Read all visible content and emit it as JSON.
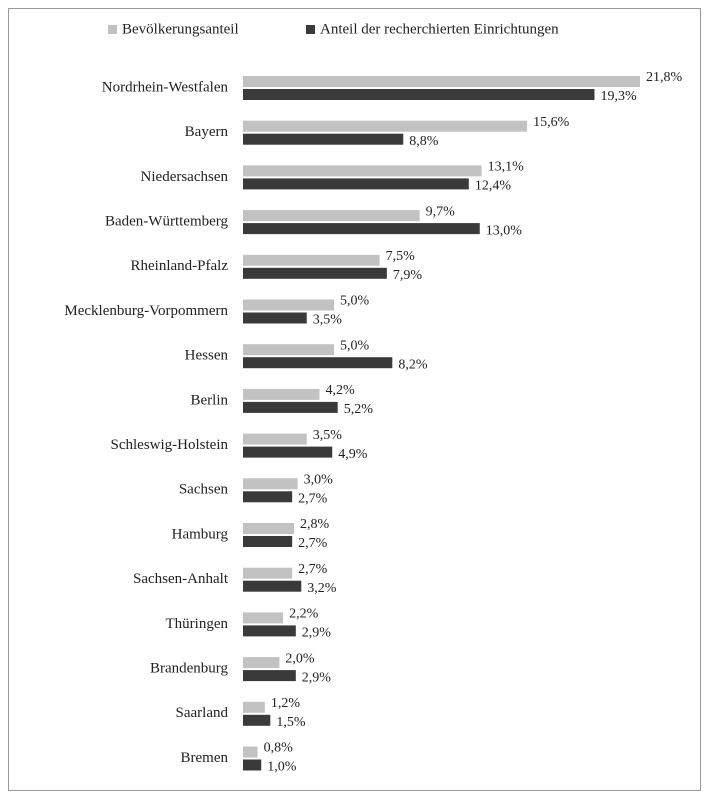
{
  "chart_data": {
    "type": "bar",
    "orientation": "horizontal",
    "categories": [
      "Nordrhein-Westfalen",
      "Bayern",
      "Niedersachsen",
      "Baden-Württemberg",
      "Rheinland-Pfalz",
      "Mecklenburg-Vorpommern",
      "Hessen",
      "Berlin",
      "Schleswig-Holstein",
      "Sachsen",
      "Hamburg",
      "Sachsen-Anhalt",
      "Thüringen",
      "Brandenburg",
      "Saarland",
      "Bremen"
    ],
    "series": [
      {
        "name": "Bevölkerungsanteil",
        "color": "#c2c2c2",
        "values": [
          21.8,
          15.6,
          13.1,
          9.7,
          7.5,
          5.0,
          5.0,
          4.2,
          3.5,
          3.0,
          2.8,
          2.7,
          2.2,
          2.0,
          1.2,
          0.8
        ],
        "value_labels": [
          "21,8%",
          "15,6%",
          "13,1%",
          "9,7%",
          "7,5%",
          "5,0%",
          "5,0%",
          "4,2%",
          "3,5%",
          "3,0%",
          "2,8%",
          "2,7%",
          "2,2%",
          "2,0%",
          "1,2%",
          "0,8%"
        ]
      },
      {
        "name": "Anteil der recherchierten Einrichtungen",
        "color": "#3a3a3a",
        "values": [
          19.3,
          8.8,
          12.4,
          13.0,
          7.9,
          3.5,
          8.2,
          5.2,
          4.9,
          2.7,
          2.7,
          3.2,
          2.9,
          2.9,
          1.5,
          1.0
        ],
        "value_labels": [
          "19,3%",
          "8,8%",
          "12,4%",
          "13,0%",
          "7,9%",
          "3,5%",
          "8,2%",
          "5,2%",
          "4,9%",
          "2,7%",
          "2,7%",
          "3,2%",
          "2,9%",
          "2,9%",
          "1,5%",
          "1,0%"
        ]
      }
    ],
    "legend": "top"
  }
}
